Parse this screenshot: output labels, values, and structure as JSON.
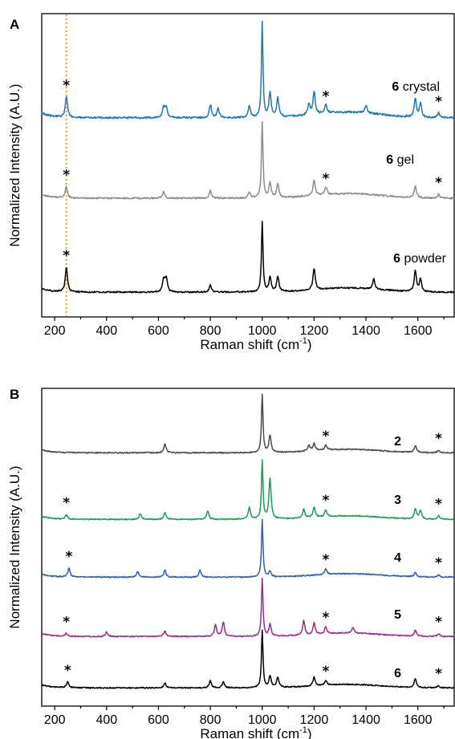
{
  "chart_data": [
    {
      "type": "line",
      "panel": "A",
      "xlabel": "Raman shift (cm",
      "xlabel_sup": "-1",
      "xlabel_close": ")",
      "ylabel": "Normalized Intensity (A.U.)",
      "xlim": [
        150,
        1740
      ],
      "xticks": [
        200,
        400,
        600,
        800,
        1000,
        1200,
        1400,
        1600
      ],
      "reference_line": {
        "x": 245,
        "color": "#f0a020"
      },
      "series": [
        {
          "name": "crystal",
          "num": "6",
          "color": "#1f77b4",
          "peaks": [
            [
              245,
              0.22
            ],
            [
              620,
              0.12
            ],
            [
              630,
              0.1
            ],
            [
              800,
              0.14
            ],
            [
              830,
              0.1
            ],
            [
              950,
              0.12
            ],
            [
              1000,
              1.0
            ],
            [
              1030,
              0.25
            ],
            [
              1060,
              0.2
            ],
            [
              1180,
              0.12
            ],
            [
              1200,
              0.24
            ],
            [
              1245,
              0.1
            ],
            [
              1400,
              0.08
            ],
            [
              1590,
              0.2
            ],
            [
              1610,
              0.14
            ],
            [
              1680,
              0.05
            ]
          ],
          "stars": [
            245,
            1245,
            1680
          ]
        },
        {
          "name": "gel",
          "num": "6",
          "color": "#8c8c8c",
          "peaks": [
            [
              245,
              0.15
            ],
            [
              620,
              0.08
            ],
            [
              800,
              0.1
            ],
            [
              950,
              0.08
            ],
            [
              1000,
              1.0
            ],
            [
              1030,
              0.2
            ],
            [
              1060,
              0.18
            ],
            [
              1200,
              0.2
            ],
            [
              1245,
              0.1
            ],
            [
              1590,
              0.15
            ],
            [
              1680,
              0.05
            ]
          ],
          "stars": [
            245,
            1245,
            1680
          ]
        },
        {
          "name": "powder",
          "num": "6",
          "color": "#000000",
          "peaks": [
            [
              245,
              0.35
            ],
            [
              620,
              0.18
            ],
            [
              630,
              0.2
            ],
            [
              800,
              0.1
            ],
            [
              1000,
              1.0
            ],
            [
              1030,
              0.2
            ],
            [
              1060,
              0.22
            ],
            [
              1200,
              0.3
            ],
            [
              1430,
              0.15
            ],
            [
              1590,
              0.3
            ],
            [
              1610,
              0.18
            ]
          ],
          "stars": [
            245
          ]
        }
      ]
    },
    {
      "type": "line",
      "panel": "B",
      "xlabel": "Raman shift (cm",
      "xlabel_sup": "-1",
      "xlabel_close": ")",
      "ylabel": "Normalized Intensity (A.U.)",
      "xlim": [
        150,
        1740
      ],
      "xticks": [
        200,
        400,
        600,
        800,
        1000,
        1200,
        1400,
        1600
      ],
      "series": [
        {
          "name": "2",
          "color": "#4a4a4a",
          "peaks": [
            [
              625,
              0.15
            ],
            [
              1000,
              1.0
            ],
            [
              1030,
              0.3
            ],
            [
              1180,
              0.1
            ],
            [
              1200,
              0.12
            ],
            [
              1245,
              0.08
            ],
            [
              1590,
              0.12
            ],
            [
              1680,
              0.04
            ]
          ],
          "stars": [
            1245,
            1680
          ]
        },
        {
          "name": "3",
          "color": "#1e9b5a",
          "peaks": [
            [
              245,
              0.08
            ],
            [
              530,
              0.1
            ],
            [
              625,
              0.12
            ],
            [
              790,
              0.15
            ],
            [
              950,
              0.2
            ],
            [
              1000,
              1.0
            ],
            [
              1030,
              0.7
            ],
            [
              1160,
              0.15
            ],
            [
              1200,
              0.18
            ],
            [
              1245,
              0.12
            ],
            [
              1590,
              0.18
            ],
            [
              1610,
              0.15
            ],
            [
              1680,
              0.06
            ]
          ],
          "stars": [
            245,
            1245,
            1680
          ]
        },
        {
          "name": "4",
          "color": "#2f5fb0",
          "peaks": [
            [
              255,
              0.15
            ],
            [
              520,
              0.1
            ],
            [
              625,
              0.12
            ],
            [
              760,
              0.12
            ],
            [
              1000,
              1.0
            ],
            [
              1030,
              0.1
            ],
            [
              1245,
              0.1
            ],
            [
              1590,
              0.08
            ],
            [
              1680,
              0.04
            ]
          ],
          "stars": [
            255,
            1245,
            1680
          ]
        },
        {
          "name": "5",
          "color": "#9b2b8f",
          "peaks": [
            [
              245,
              0.05
            ],
            [
              400,
              0.08
            ],
            [
              625,
              0.1
            ],
            [
              820,
              0.2
            ],
            [
              850,
              0.25
            ],
            [
              1000,
              1.0
            ],
            [
              1030,
              0.2
            ],
            [
              1160,
              0.25
            ],
            [
              1200,
              0.2
            ],
            [
              1245,
              0.12
            ],
            [
              1350,
              0.1
            ],
            [
              1590,
              0.1
            ],
            [
              1680,
              0.05
            ]
          ],
          "stars": [
            245,
            1245,
            1680
          ]
        },
        {
          "name": "6",
          "color": "#000000",
          "peaks": [
            [
              250,
              0.1
            ],
            [
              625,
              0.08
            ],
            [
              800,
              0.12
            ],
            [
              850,
              0.1
            ],
            [
              1000,
              1.0
            ],
            [
              1030,
              0.2
            ],
            [
              1060,
              0.18
            ],
            [
              1200,
              0.15
            ],
            [
              1245,
              0.08
            ],
            [
              1590,
              0.15
            ],
            [
              1680,
              0.04
            ]
          ],
          "stars": [
            250,
            1245,
            1680
          ]
        }
      ]
    }
  ]
}
